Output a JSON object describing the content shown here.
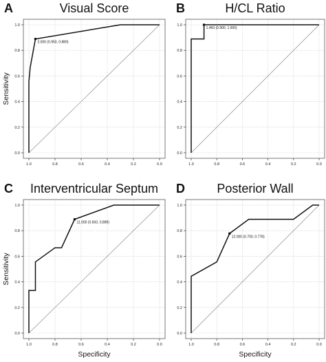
{
  "chart_data": [
    {
      "type": "line",
      "letter": "A",
      "title": "Visual Score",
      "xlabel": "",
      "ylabel": "Sensitivity",
      "x_axis": "Specificity (reversed)",
      "xlim": [
        1.0,
        0.0
      ],
      "ylim": [
        0.0,
        1.0
      ],
      "xticks": [
        "1.0",
        "0.8",
        "0.6",
        "0.4",
        "0.2",
        "0.0"
      ],
      "yticks": [
        "0.0",
        "0.2",
        "0.4",
        "0.6",
        "0.8",
        "1.0"
      ],
      "grid": true,
      "series": [
        {
          "x": [
            1.0,
            1.0,
            0.99,
            0.95,
            0.3,
            0.0
          ],
          "y": [
            0.0,
            0.556,
            0.667,
            0.889,
            1.0,
            1.0
          ]
        }
      ],
      "annotation": {
        "x": 0.95,
        "y": 0.889,
        "text": "2.000 (0.950, 0.889)"
      }
    },
    {
      "type": "line",
      "letter": "B",
      "title": "H/CL Ratio",
      "xlabel": "",
      "ylabel": "",
      "xlim": [
        1.0,
        0.0
      ],
      "ylim": [
        0.0,
        1.0
      ],
      "xticks": [
        "1.0",
        "0.8",
        "0.6",
        "0.4",
        "0.2",
        "0.0"
      ],
      "yticks": [
        "0.0",
        "0.2",
        "0.4",
        "0.6",
        "0.8",
        "1.0"
      ],
      "grid": true,
      "series": [
        {
          "x": [
            1.0,
            1.0,
            0.9,
            0.9,
            0.0
          ],
          "y": [
            0.0,
            0.889,
            0.889,
            1.0,
            1.0
          ]
        }
      ],
      "annotation": {
        "x": 0.9,
        "y": 1.0,
        "text": "1.460 (0.900, 1.000)"
      }
    },
    {
      "type": "line",
      "letter": "C",
      "title": "Interventricular Septum",
      "xlabel": "Specificity",
      "ylabel": "Sensitivity",
      "xlim": [
        1.0,
        0.0
      ],
      "ylim": [
        0.0,
        1.0
      ],
      "xticks": [
        "1.0",
        "0.8",
        "0.6",
        "0.4",
        "0.2",
        "0.0"
      ],
      "yticks": [
        "0.0",
        "0.2",
        "0.4",
        "0.6",
        "0.8",
        "1.0"
      ],
      "grid": true,
      "series": [
        {
          "x": [
            1.0,
            1.0,
            0.95,
            0.95,
            0.8,
            0.75,
            0.65,
            0.35,
            0.0
          ],
          "y": [
            0.0,
            0.333,
            0.333,
            0.556,
            0.667,
            0.667,
            0.889,
            1.0,
            1.0
          ]
        }
      ],
      "annotation": {
        "x": 0.65,
        "y": 0.889,
        "text": "11.000 (0.650, 0.889)"
      }
    },
    {
      "type": "line",
      "letter": "D",
      "title": "Posterior Wall",
      "xlabel": "Specificity",
      "ylabel": "",
      "xlim": [
        1.0,
        0.0
      ],
      "ylim": [
        0.0,
        1.0
      ],
      "xticks": [
        "1.0",
        "0.8",
        "0.6",
        "0.4",
        "0.2",
        "0.0"
      ],
      "yticks": [
        "0.0",
        "0.2",
        "0.4",
        "0.6",
        "0.8",
        "1.0"
      ],
      "grid": true,
      "series": [
        {
          "x": [
            1.0,
            1.0,
            0.8,
            0.7,
            0.55,
            0.2,
            0.05,
            0.0
          ],
          "y": [
            0.0,
            0.444,
            0.556,
            0.778,
            0.889,
            0.889,
            1.0,
            1.0
          ]
        }
      ],
      "annotation": {
        "x": 0.7,
        "y": 0.778,
        "text": "12.000 (0.700, 0.778)"
      }
    }
  ]
}
